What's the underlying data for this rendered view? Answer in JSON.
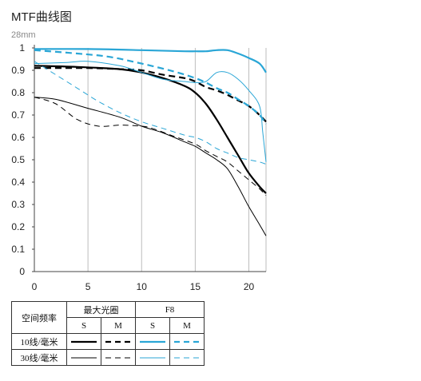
{
  "title": "MTF曲线图",
  "subtitle": "28mm",
  "chart_data": {
    "type": "line",
    "xlim": [
      0,
      21.6
    ],
    "ylim": [
      0,
      1
    ],
    "x_ticks": [
      0,
      5,
      10,
      15,
      20
    ],
    "y_ticks": [
      0,
      0.1,
      0.2,
      0.3,
      0.4,
      0.5,
      0.6,
      0.7,
      0.8,
      0.9,
      1
    ],
    "y_tick_labels": [
      "0",
      "0.1",
      "0.2",
      "0.3",
      "0.4",
      "0.5",
      "0.6",
      "0.7",
      "0.8",
      "0.9",
      "1"
    ],
    "grid": "vertical",
    "series": [
      {
        "name": "最大光圈 S 10线/毫米",
        "color": "#000000",
        "dash": "solid",
        "weight": "thick",
        "points": [
          [
            0,
            0.92
          ],
          [
            4,
            0.915
          ],
          [
            8,
            0.905
          ],
          [
            10,
            0.89
          ],
          [
            12,
            0.865
          ],
          [
            14,
            0.83
          ],
          [
            15,
            0.8
          ],
          [
            16,
            0.75
          ],
          [
            17,
            0.68
          ],
          [
            18,
            0.6
          ],
          [
            19,
            0.52
          ],
          [
            20,
            0.44
          ],
          [
            21,
            0.38
          ],
          [
            21.6,
            0.35
          ]
        ]
      },
      {
        "name": "最大光圈 M 10线/毫米",
        "color": "#000000",
        "dash": "dash",
        "weight": "thick",
        "points": [
          [
            0,
            0.91
          ],
          [
            5,
            0.91
          ],
          [
            8,
            0.905
          ],
          [
            10,
            0.9
          ],
          [
            12,
            0.88
          ],
          [
            14,
            0.865
          ],
          [
            15,
            0.85
          ],
          [
            16,
            0.825
          ],
          [
            17,
            0.81
          ],
          [
            18,
            0.79
          ],
          [
            19,
            0.765
          ],
          [
            20,
            0.74
          ],
          [
            21,
            0.7
          ],
          [
            21.6,
            0.67
          ]
        ]
      },
      {
        "name": "F8 S 10线/毫米",
        "color": "#2aa6d6",
        "dash": "solid",
        "weight": "thick",
        "points": [
          [
            0,
            0.995
          ],
          [
            5,
            0.995
          ],
          [
            10,
            0.99
          ],
          [
            14,
            0.985
          ],
          [
            15,
            0.985
          ],
          [
            16,
            0.985
          ],
          [
            17,
            0.99
          ],
          [
            18,
            0.99
          ],
          [
            19,
            0.975
          ],
          [
            20,
            0.955
          ],
          [
            21,
            0.93
          ],
          [
            21.6,
            0.89
          ]
        ]
      },
      {
        "name": "F8 M 10线/毫米",
        "color": "#2aa6d6",
        "dash": "dash",
        "weight": "thick",
        "points": [
          [
            0,
            0.99
          ],
          [
            4,
            0.975
          ],
          [
            7,
            0.96
          ],
          [
            10,
            0.93
          ],
          [
            13,
            0.895
          ],
          [
            15,
            0.865
          ],
          [
            16,
            0.845
          ],
          [
            17,
            0.82
          ],
          [
            18,
            0.8
          ],
          [
            19,
            0.77
          ],
          [
            20,
            0.74
          ],
          [
            21,
            0.7
          ],
          [
            21.6,
            0.66
          ]
        ]
      },
      {
        "name": "最大光圈 S 30线/毫米",
        "color": "#000000",
        "dash": "solid",
        "weight": "thin",
        "points": [
          [
            0,
            0.78
          ],
          [
            2,
            0.77
          ],
          [
            5,
            0.73
          ],
          [
            8,
            0.69
          ],
          [
            10,
            0.65
          ],
          [
            12,
            0.62
          ],
          [
            14,
            0.58
          ],
          [
            15,
            0.56
          ],
          [
            16,
            0.53
          ],
          [
            17,
            0.5
          ],
          [
            18,
            0.46
          ],
          [
            19,
            0.38
          ],
          [
            20,
            0.29
          ],
          [
            21,
            0.21
          ],
          [
            21.6,
            0.16
          ]
        ]
      },
      {
        "name": "最大光圈 M 30线/毫米",
        "color": "#000000",
        "dash": "dash",
        "weight": "thin",
        "points": [
          [
            0,
            0.78
          ],
          [
            2,
            0.75
          ],
          [
            4,
            0.68
          ],
          [
            6,
            0.65
          ],
          [
            8,
            0.655
          ],
          [
            10,
            0.65
          ],
          [
            11,
            0.64
          ],
          [
            13,
            0.605
          ],
          [
            15,
            0.57
          ],
          [
            16,
            0.54
          ],
          [
            17,
            0.515
          ],
          [
            18,
            0.49
          ],
          [
            19,
            0.45
          ],
          [
            20,
            0.41
          ],
          [
            21,
            0.37
          ],
          [
            21.6,
            0.34
          ]
        ]
      },
      {
        "name": "F8 S 30线/毫米",
        "color": "#2aa6d6",
        "dash": "solid",
        "weight": "thin",
        "points": [
          [
            0,
            0.93
          ],
          [
            3,
            0.935
          ],
          [
            5,
            0.94
          ],
          [
            8,
            0.92
          ],
          [
            10,
            0.89
          ],
          [
            12,
            0.86
          ],
          [
            14,
            0.85
          ],
          [
            15,
            0.845
          ],
          [
            16,
            0.85
          ],
          [
            17,
            0.89
          ],
          [
            18,
            0.89
          ],
          [
            19,
            0.86
          ],
          [
            20,
            0.81
          ],
          [
            21,
            0.74
          ],
          [
            21.3,
            0.62
          ],
          [
            21.6,
            0.49
          ]
        ]
      },
      {
        "name": "F8 M 30线/毫米",
        "color": "#2aa6d6",
        "dash": "dash",
        "weight": "thin",
        "points": [
          [
            0,
            0.94
          ],
          [
            2,
            0.88
          ],
          [
            4,
            0.82
          ],
          [
            6,
            0.76
          ],
          [
            8,
            0.71
          ],
          [
            10,
            0.67
          ],
          [
            12,
            0.64
          ],
          [
            14,
            0.61
          ],
          [
            15,
            0.6
          ],
          [
            16,
            0.58
          ],
          [
            17,
            0.55
          ],
          [
            18,
            0.53
          ],
          [
            19,
            0.51
          ],
          [
            20,
            0.5
          ],
          [
            21,
            0.49
          ],
          [
            21.6,
            0.48
          ]
        ]
      }
    ]
  },
  "legend": {
    "corner_label": "空间频率",
    "group_max_aperture": "最大光圈",
    "group_f8": "F8",
    "sub_s1": "S",
    "sub_m1": "M",
    "sub_s2": "S",
    "sub_m2": "M",
    "row_10": "10线/毫米",
    "row_30": "30线/毫米",
    "black": "#000000",
    "blue": "#2aa6d6"
  }
}
